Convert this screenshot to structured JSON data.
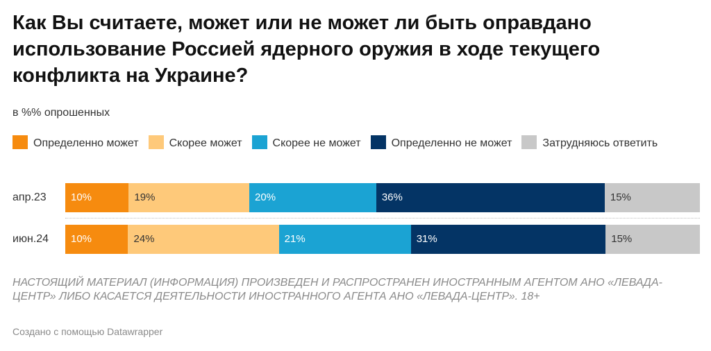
{
  "header": {
    "title": "Как Вы считаете, может или не может ли быть оправдано использование Россией ядерного оружия в ходе текущего конфликта на Украине?",
    "subtitle": "в %% опрошенных"
  },
  "footer": {
    "note": "НАСТОЯЩИЙ МАТЕРИАЛ (ИНФОРМАЦИЯ) ПРОИЗВЕДЕН И РАСПРОСТРАНЕН ИНОСТРАННЫМ АГЕНТОМ АНО «ЛЕВАДА-ЦЕНТР» ЛИБО КАСАЕТСЯ ДЕЯТЕЛЬНОСТИ ИНОСТРАННОГО АГЕНТА АНО «ЛЕВАДА-ЦЕНТР». 18+",
    "credit": "Создано с помощью Datawrapper"
  },
  "chart_data": {
    "type": "bar",
    "stacked": true,
    "orientation": "horizontal",
    "unit": "%",
    "legend_position": "top",
    "categories": [
      "апр.23",
      "июн.24"
    ],
    "series": [
      {
        "name": "Определенно может",
        "color": "#f68b0f",
        "text_color": "#ffffff",
        "values": [
          10,
          10
        ],
        "labels": [
          "10%",
          "10%"
        ]
      },
      {
        "name": "Скорее может",
        "color": "#fec97a",
        "text_color": "#333333",
        "values": [
          19,
          24
        ],
        "labels": [
          "19%",
          "24%"
        ]
      },
      {
        "name": "Скорее не может",
        "color": "#1ba3d3",
        "text_color": "#ffffff",
        "values": [
          20,
          21
        ],
        "labels": [
          "20%",
          "21%"
        ]
      },
      {
        "name": "Определенно не может",
        "color": "#043465",
        "text_color": "#ffffff",
        "values": [
          36,
          31
        ],
        "labels": [
          "36%",
          "31%"
        ]
      },
      {
        "name": "Затрудняюсь ответить",
        "color": "#c8c8c8",
        "text_color": "#333333",
        "values": [
          15,
          15
        ],
        "labels": [
          "15%",
          "15%"
        ]
      }
    ]
  }
}
